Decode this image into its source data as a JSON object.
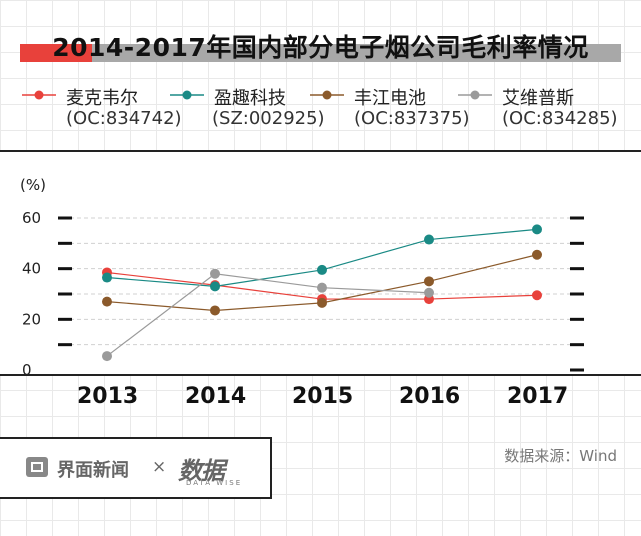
{
  "title": "2014-2017年国内部分电子烟公司毛利率情况",
  "source": "数据来源：Wind",
  "branding": {
    "jiemian": "界面新闻",
    "times": "×",
    "datawise": "数据",
    "datawise_sub": "DATA WISE"
  },
  "chart_data": {
    "type": "line",
    "ylabel": "(%)",
    "x": [
      "2013",
      "2014",
      "2015",
      "2016",
      "2017"
    ],
    "yticks": [
      "60",
      "40",
      "20",
      "0"
    ],
    "ylim": [
      0,
      60
    ],
    "grid": true,
    "legend": "top",
    "series": [
      {
        "name": "麦克韦尔",
        "code": "(OC:834742)",
        "color": "#e8413b",
        "values": [
          38.5,
          33.5,
          28,
          28,
          29.5
        ]
      },
      {
        "name": "盈趣科技",
        "code": "(SZ:002925)",
        "color": "#1a8a85",
        "values": [
          36.5,
          33,
          39.5,
          51.5,
          55.5
        ]
      },
      {
        "name": "丰江电池",
        "code": "(OC:837375)",
        "color": "#8b5a2b",
        "values": [
          27,
          23.5,
          26.5,
          35,
          45.5
        ]
      },
      {
        "name": "艾维普斯",
        "code": "(OC:834285)",
        "color": "#9a9a9a",
        "values": [
          5.5,
          38,
          32.5,
          30.5,
          null
        ]
      }
    ]
  }
}
